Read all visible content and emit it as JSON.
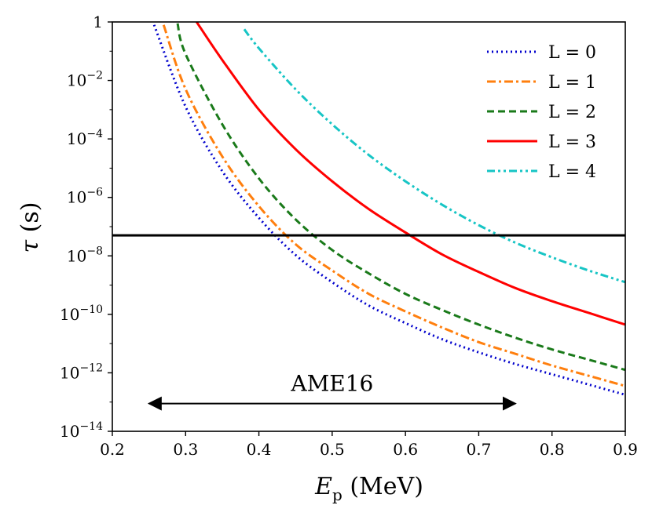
{
  "chart_data": {
    "type": "line",
    "title": "",
    "xlabel": "E_p (MeV)",
    "ylabel": "τ (s)",
    "xlim": [
      0.2,
      0.9
    ],
    "ylim_log10": [
      -14,
      0
    ],
    "y_scale": "log",
    "x_ticks": [
      0.2,
      0.3,
      0.4,
      0.5,
      0.6,
      0.7,
      0.8,
      0.9
    ],
    "x_tick_labels": [
      "0.2",
      "0.3",
      "0.4",
      "0.5",
      "0.6",
      "0.7",
      "0.8",
      "0.9"
    ],
    "y_ticks_log10": [
      0,
      -2,
      -4,
      -6,
      -8,
      -10,
      -12,
      -14
    ],
    "y_tick_labels": [
      {
        "base": "1",
        "exp": ""
      },
      {
        "base": "10",
        "exp": "−2"
      },
      {
        "base": "10",
        "exp": "−4"
      },
      {
        "base": "10",
        "exp": "−6"
      },
      {
        "base": "10",
        "exp": "−8"
      },
      {
        "base": "10",
        "exp": "−10"
      },
      {
        "base": "10",
        "exp": "−12"
      },
      {
        "base": "10",
        "exp": "−14"
      }
    ],
    "legend_position": "top-right",
    "series": [
      {
        "name": "L = 0",
        "color": "#0000cc",
        "dash": "dotted",
        "x": [
          0.257,
          0.3,
          0.35,
          0.4,
          0.45,
          0.5,
          0.55,
          0.6,
          0.65,
          0.7,
          0.75,
          0.8,
          0.85,
          0.9
        ],
        "log10_tau": [
          -0.1,
          -2.9,
          -5.1,
          -6.7,
          -7.97,
          -8.9,
          -9.7,
          -10.3,
          -10.85,
          -11.3,
          -11.7,
          -12.05,
          -12.4,
          -12.75
        ]
      },
      {
        "name": "L = 1",
        "color": "#ff7f0e",
        "dash": "dashdot",
        "x": [
          0.27,
          0.3,
          0.35,
          0.4,
          0.45,
          0.5,
          0.55,
          0.6,
          0.65,
          0.7,
          0.75,
          0.8,
          0.85,
          0.9
        ],
        "log10_tau": [
          -0.1,
          -2.3,
          -4.6,
          -6.3,
          -7.6,
          -8.5,
          -9.3,
          -9.9,
          -10.45,
          -10.95,
          -11.35,
          -11.75,
          -12.1,
          -12.45
        ]
      },
      {
        "name": "L = 2",
        "color": "#1a7a1a",
        "dash": "dashed",
        "x": [
          0.289,
          0.3,
          0.35,
          0.4,
          0.45,
          0.5,
          0.55,
          0.6,
          0.65,
          0.7,
          0.75,
          0.8,
          0.85,
          0.9
        ],
        "log10_tau": [
          -0.05,
          -1.1,
          -3.5,
          -5.35,
          -6.75,
          -7.8,
          -8.6,
          -9.3,
          -9.85,
          -10.35,
          -10.8,
          -11.2,
          -11.55,
          -11.9
        ]
      },
      {
        "name": "L = 3",
        "color": "#ff0000",
        "dash": "solid",
        "x": [
          0.315,
          0.35,
          0.4,
          0.45,
          0.5,
          0.55,
          0.6,
          0.65,
          0.7,
          0.75,
          0.8,
          0.85,
          0.9
        ],
        "log10_tau": [
          0.0,
          -1.3,
          -3.0,
          -4.35,
          -5.45,
          -6.4,
          -7.2,
          -7.95,
          -8.55,
          -9.1,
          -9.55,
          -9.95,
          -10.35
        ]
      },
      {
        "name": "L = 4",
        "color": "#17c5c5",
        "dash": "dashdotdot",
        "x": [
          0.38,
          0.4,
          0.45,
          0.5,
          0.55,
          0.6,
          0.65,
          0.7,
          0.75,
          0.8,
          0.85,
          0.9
        ],
        "log10_tau": [
          -0.25,
          -0.9,
          -2.3,
          -3.5,
          -4.55,
          -5.45,
          -6.25,
          -6.95,
          -7.55,
          -8.05,
          -8.5,
          -8.9
        ]
      }
    ],
    "reference_line": {
      "log10_tau": -7.3,
      "color": "#000000"
    },
    "annotation": {
      "text": "AME16",
      "x_start": 0.25,
      "x_end": 0.75,
      "log10_tau": -13.05
    }
  }
}
